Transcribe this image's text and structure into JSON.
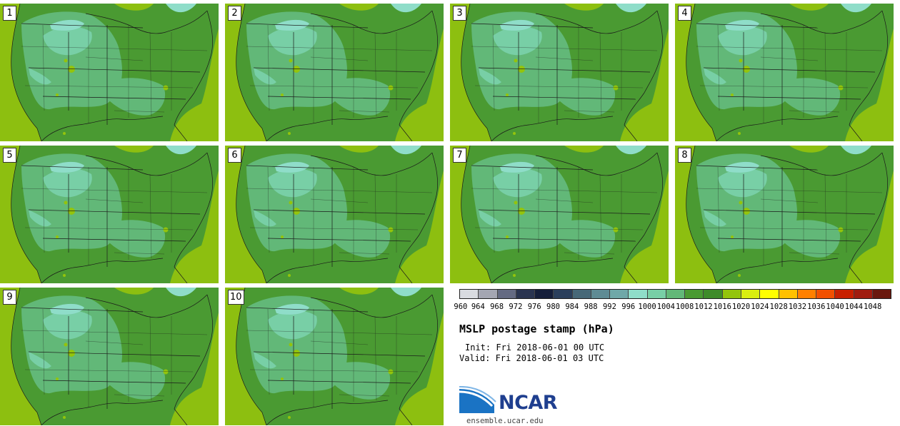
{
  "panels": [
    {
      "label": "1"
    },
    {
      "label": "2"
    },
    {
      "label": "3"
    },
    {
      "label": "4"
    },
    {
      "label": "5"
    },
    {
      "label": "6"
    },
    {
      "label": "7"
    },
    {
      "label": "8"
    },
    {
      "label": "9"
    },
    {
      "label": "10"
    }
  ],
  "colorbar": {
    "colors": [
      "#d9dbe0",
      "#a4a6b2",
      "#646a82",
      "#2a3450",
      "#151e3a",
      "#2b3f5c",
      "#476878",
      "#5f8b94",
      "#6fa8a8",
      "#8fddc9",
      "#78cfa6",
      "#62b878",
      "#4a9a32",
      "#3e8b2a",
      "#93c40c",
      "#d9ee10",
      "#ffff00",
      "#ffc000",
      "#ff8000",
      "#f25000",
      "#c82000",
      "#a01c10",
      "#6a180e"
    ],
    "tick_labels": [
      "960",
      "964",
      "968",
      "972",
      "976",
      "980",
      "984",
      "988",
      "992",
      "996",
      "1000",
      "1004",
      "1008",
      "1012",
      "1016",
      "1020",
      "1024",
      "1028",
      "1032",
      "1036",
      "1040",
      "1044",
      "1048"
    ]
  },
  "title": "MSLP postage stamp (hPa)",
  "init": "Init: Fri 2018-06-01 00 UTC",
  "valid": "Valid: Fri 2018-06-01 03 UTC",
  "logo": {
    "text": "NCAR",
    "url_text": "ensemble.ucar.edu"
  },
  "map_colors": {
    "ocean": "#8dbf10",
    "land_1012": "#4a9a32",
    "land_1008": "#62b878",
    "land_1004": "#78cfa6",
    "land_1000": "#8fddc9",
    "spot_1016": "#93c40c"
  }
}
